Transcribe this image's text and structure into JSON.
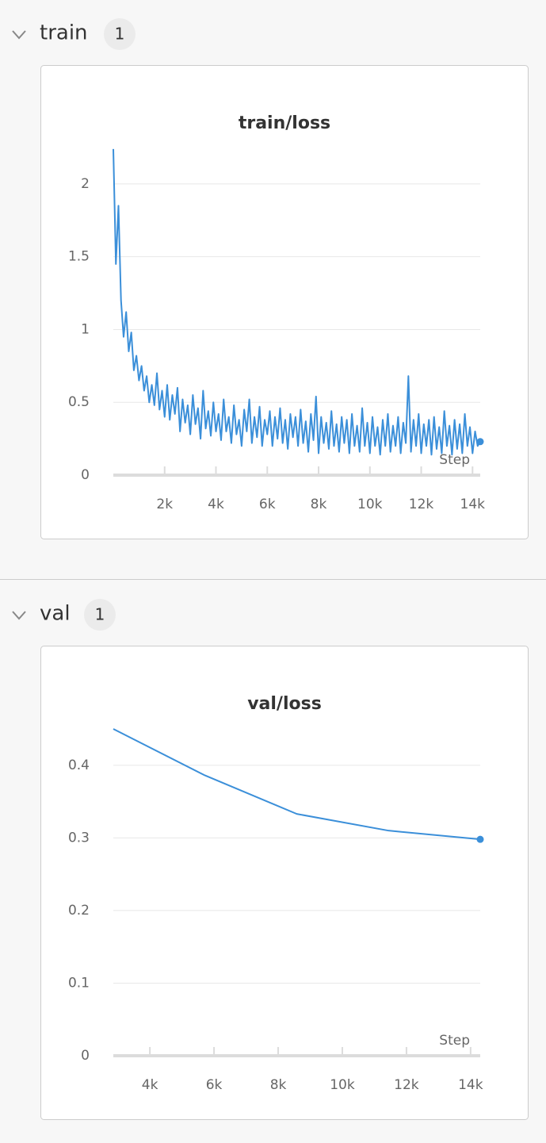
{
  "sections": [
    {
      "title": "train",
      "count": 1
    },
    {
      "title": "val",
      "count": 1
    }
  ],
  "chart_data": [
    {
      "type": "line",
      "title": "train/loss",
      "x_label": "Step",
      "color": "#3b8fd9",
      "grid": true,
      "xlim": [
        0,
        14300
      ],
      "ylim": [
        0,
        2.25
      ],
      "xticks": [
        {
          "value": 2000,
          "label": "2k"
        },
        {
          "value": 4000,
          "label": "4k"
        },
        {
          "value": 6000,
          "label": "6k"
        },
        {
          "value": 8000,
          "label": "8k"
        },
        {
          "value": 10000,
          "label": "10k"
        },
        {
          "value": 12000,
          "label": "12k"
        },
        {
          "value": 14000,
          "label": "14k"
        }
      ],
      "yticks": [
        0,
        0.5,
        1,
        1.5,
        2
      ],
      "x": [
        0,
        100,
        200,
        300,
        400,
        500,
        600,
        700,
        800,
        900,
        1000,
        1100,
        1200,
        1300,
        1400,
        1500,
        1600,
        1700,
        1800,
        1900,
        2000,
        2100,
        2200,
        2300,
        2400,
        2500,
        2600,
        2700,
        2800,
        2900,
        3000,
        3100,
        3200,
        3300,
        3400,
        3500,
        3600,
        3700,
        3800,
        3900,
        4000,
        4100,
        4200,
        4300,
        4400,
        4500,
        4600,
        4700,
        4800,
        4900,
        5000,
        5100,
        5200,
        5300,
        5400,
        5500,
        5600,
        5700,
        5800,
        5900,
        6000,
        6100,
        6200,
        6300,
        6400,
        6500,
        6600,
        6700,
        6800,
        6900,
        7000,
        7100,
        7200,
        7300,
        7400,
        7500,
        7600,
        7700,
        7800,
        7900,
        8000,
        8100,
        8200,
        8300,
        8400,
        8500,
        8600,
        8700,
        8800,
        8900,
        9000,
        9100,
        9200,
        9300,
        9400,
        9500,
        9600,
        9700,
        9800,
        9900,
        10000,
        10100,
        10200,
        10300,
        10400,
        10500,
        10600,
        10700,
        10800,
        10900,
        11000,
        11100,
        11200,
        11300,
        11400,
        11500,
        11600,
        11700,
        11800,
        11900,
        12000,
        12100,
        12200,
        12300,
        12400,
        12500,
        12600,
        12700,
        12800,
        12900,
        13000,
        13100,
        13200,
        13300,
        13400,
        13500,
        13600,
        13700,
        13800,
        13900,
        14000,
        14100,
        14200,
        14300
      ],
      "series": [
        {
          "name": "loss",
          "color": "#3b8fd9",
          "values": [
            2.24,
            1.45,
            1.85,
            1.2,
            0.95,
            1.12,
            0.85,
            0.98,
            0.72,
            0.82,
            0.65,
            0.75,
            0.58,
            0.68,
            0.5,
            0.62,
            0.48,
            0.7,
            0.45,
            0.58,
            0.4,
            0.62,
            0.38,
            0.55,
            0.42,
            0.6,
            0.3,
            0.52,
            0.36,
            0.48,
            0.28,
            0.55,
            0.35,
            0.46,
            0.25,
            0.58,
            0.32,
            0.44,
            0.27,
            0.5,
            0.3,
            0.42,
            0.24,
            0.52,
            0.3,
            0.4,
            0.22,
            0.48,
            0.28,
            0.38,
            0.2,
            0.45,
            0.3,
            0.52,
            0.22,
            0.4,
            0.26,
            0.47,
            0.2,
            0.38,
            0.28,
            0.44,
            0.2,
            0.4,
            0.25,
            0.46,
            0.22,
            0.38,
            0.18,
            0.42,
            0.26,
            0.4,
            0.2,
            0.45,
            0.22,
            0.37,
            0.16,
            0.42,
            0.24,
            0.54,
            0.15,
            0.4,
            0.22,
            0.36,
            0.18,
            0.44,
            0.2,
            0.35,
            0.16,
            0.4,
            0.22,
            0.38,
            0.15,
            0.42,
            0.2,
            0.34,
            0.16,
            0.46,
            0.2,
            0.36,
            0.15,
            0.4,
            0.2,
            0.33,
            0.14,
            0.38,
            0.2,
            0.42,
            0.16,
            0.34,
            0.2,
            0.4,
            0.15,
            0.36,
            0.22,
            0.68,
            0.16,
            0.38,
            0.2,
            0.42,
            0.15,
            0.35,
            0.2,
            0.38,
            0.14,
            0.4,
            0.18,
            0.33,
            0.15,
            0.44,
            0.2,
            0.34,
            0.14,
            0.38,
            0.18,
            0.35,
            0.15,
            0.42,
            0.2,
            0.33,
            0.15,
            0.3,
            0.2,
            0.23
          ]
        }
      ]
    },
    {
      "type": "line",
      "title": "val/loss",
      "x_label": "Step",
      "color": "#3b8fd9",
      "grid": true,
      "xlim": [
        2860,
        14300
      ],
      "ylim": [
        0,
        0.45
      ],
      "xticks": [
        {
          "value": 4000,
          "label": "4k"
        },
        {
          "value": 6000,
          "label": "6k"
        },
        {
          "value": 8000,
          "label": "8k"
        },
        {
          "value": 10000,
          "label": "10k"
        },
        {
          "value": 12000,
          "label": "12k"
        },
        {
          "value": 14000,
          "label": "14k"
        }
      ],
      "yticks": [
        0,
        0.1,
        0.2,
        0.3,
        0.4
      ],
      "x": [
        2860,
        5720,
        8580,
        11440,
        14300
      ],
      "series": [
        {
          "name": "loss",
          "color": "#3b8fd9",
          "values": [
            0.45,
            0.386,
            0.333,
            0.31,
            0.298
          ]
        }
      ]
    }
  ]
}
